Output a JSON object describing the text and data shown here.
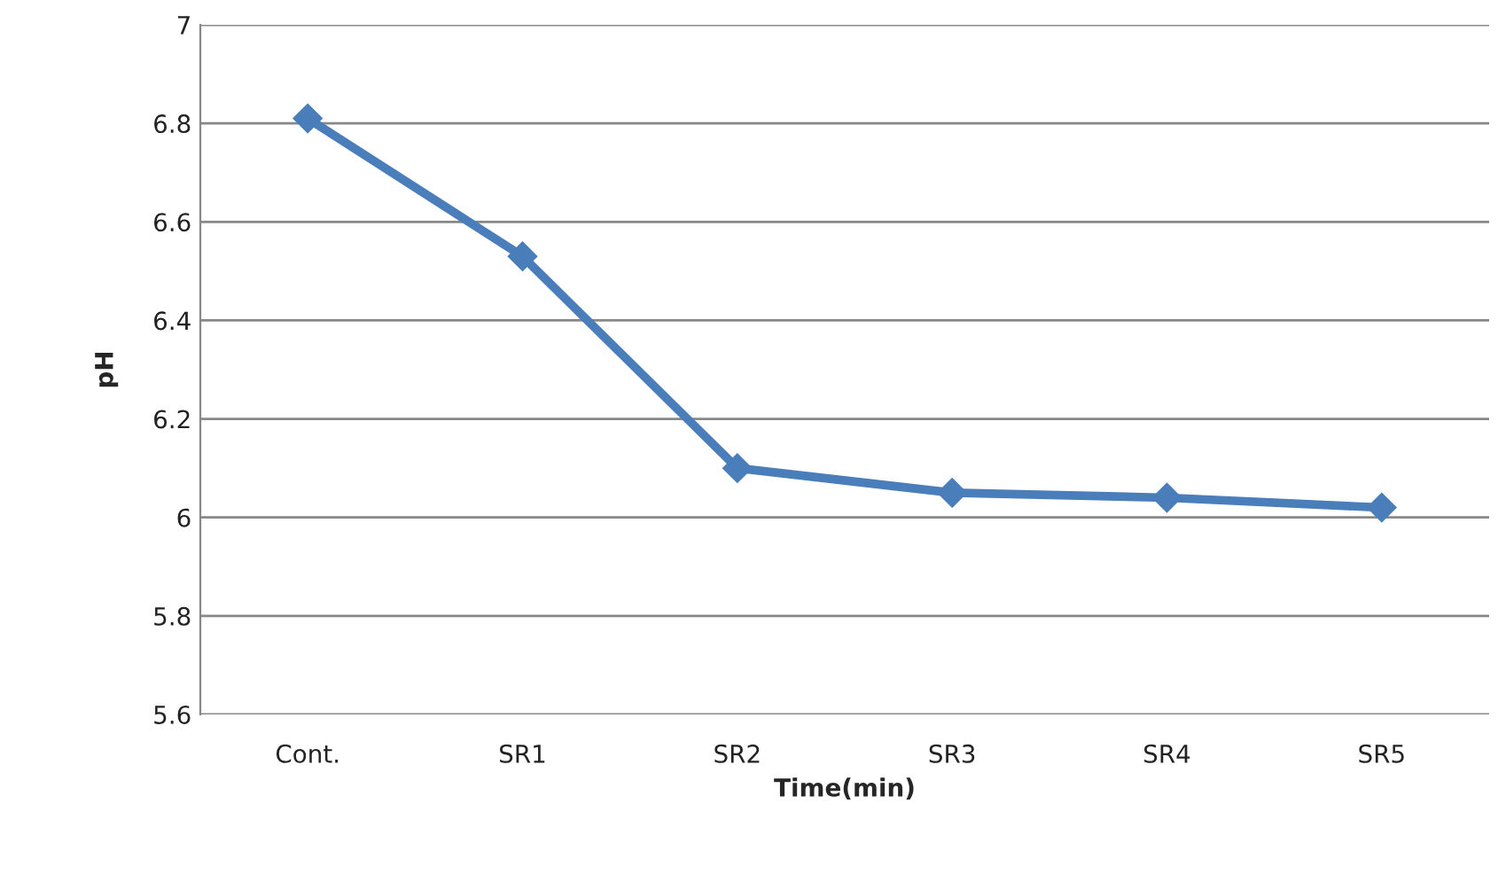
{
  "chart_data": {
    "type": "line",
    "xlabel": "Time(min)",
    "ylabel": "pH",
    "categories": [
      "Cont.",
      "SR1",
      "SR2",
      "SR3",
      "SR4",
      "SR5"
    ],
    "series": [
      {
        "color": "#4a7ebb",
        "values": [
          6.81,
          6.53,
          6.1,
          6.05,
          6.04,
          6.02
        ]
      }
    ],
    "ylim": [
      5.6,
      7
    ],
    "yticks": [
      5.6,
      5.8,
      6,
      6.2,
      6.4,
      6.6,
      6.8,
      7
    ],
    "grid": "y",
    "legend": false,
    "marker": "diamond",
    "line_style": "solid"
  }
}
